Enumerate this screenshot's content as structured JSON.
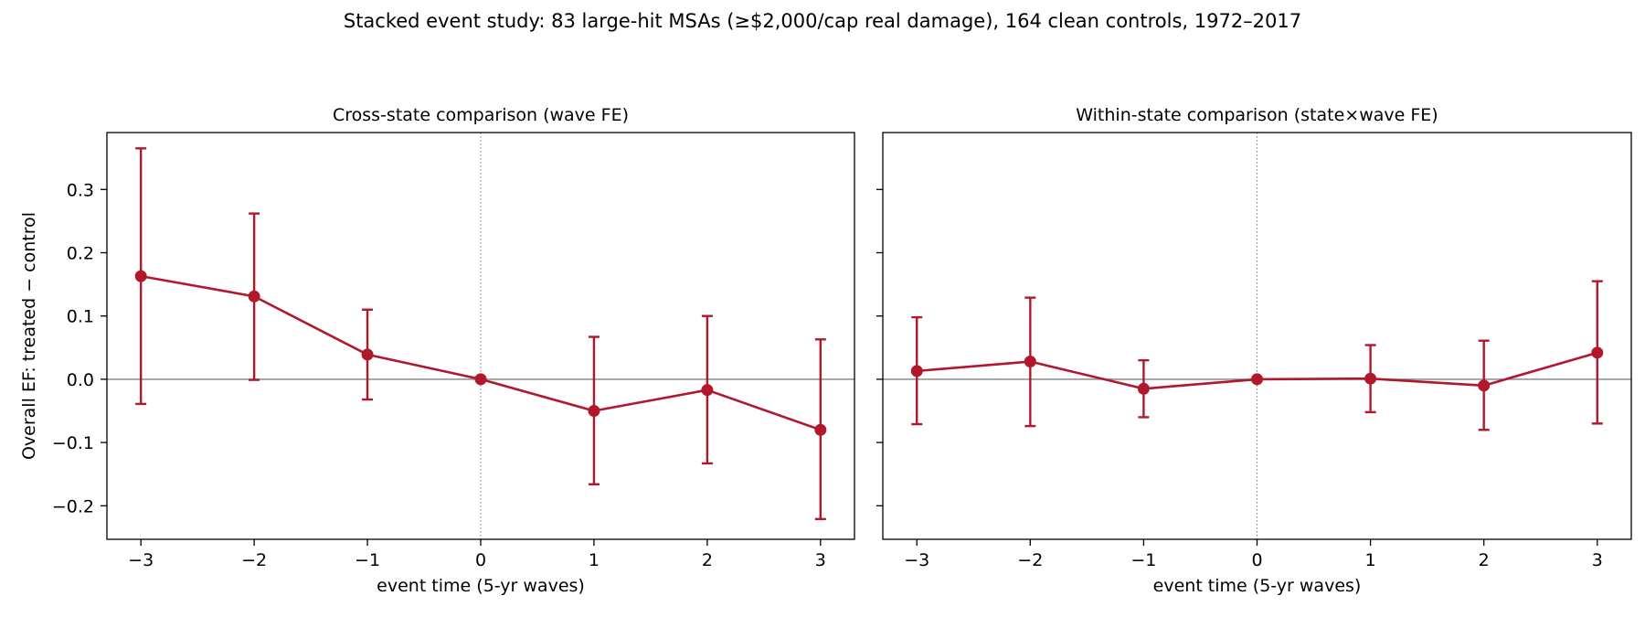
{
  "figure": {
    "suptitle": "Stacked event study: 83 large-hit MSAs (≥$2,000/cap real damage), 164 clean controls, 1972–2017"
  },
  "colors": {
    "series": "#b2182b",
    "zero_line": "#808080",
    "event_line": "#808080",
    "axes": "#000000"
  },
  "chart_data": [
    {
      "type": "line",
      "title": "Cross-state comparison (wave FE)",
      "xlabel": "event time (5-yr waves)",
      "ylabel": "Overall EF: treated − control",
      "x": [
        -3,
        -2,
        -1,
        0,
        1,
        2,
        3
      ],
      "xtick_labels": [
        "−3",
        "−2",
        "−1",
        "0",
        "1",
        "2",
        "3"
      ],
      "yticks": [
        -0.2,
        -0.1,
        0.0,
        0.1,
        0.2,
        0.3
      ],
      "ytick_labels": [
        "−0.2",
        "−0.1",
        "0.0",
        "0.1",
        "0.2",
        "0.3"
      ],
      "xlim": [
        -3.3,
        3.3
      ],
      "ylim": [
        -0.253,
        0.39
      ],
      "grid": false,
      "legend": "none",
      "reference_lines": {
        "y": 0,
        "x": 0
      },
      "series": [
        {
          "y": [
            0.163,
            0.131,
            0.039,
            0.0,
            -0.05,
            -0.017,
            -0.08
          ],
          "ci_low": [
            -0.039,
            -0.001,
            -0.032,
            0.0,
            -0.166,
            -0.133,
            -0.221
          ],
          "ci_high": [
            0.365,
            0.262,
            0.11,
            0.0,
            0.067,
            0.1,
            0.063
          ]
        }
      ]
    },
    {
      "type": "line",
      "title": "Within-state comparison (state×wave FE)",
      "xlabel": "event time (5-yr waves)",
      "ylabel": "",
      "x": [
        -3,
        -2,
        -1,
        0,
        1,
        2,
        3
      ],
      "xtick_labels": [
        "−3",
        "−2",
        "−1",
        "0",
        "1",
        "2",
        "3"
      ],
      "yticks": [
        -0.2,
        -0.1,
        0.0,
        0.1,
        0.2,
        0.3
      ],
      "ytick_labels": [],
      "xlim": [
        -3.3,
        3.3
      ],
      "ylim": [
        -0.253,
        0.39
      ],
      "grid": false,
      "legend": "none",
      "reference_lines": {
        "y": 0,
        "x": 0
      },
      "series": [
        {
          "y": [
            0.013,
            0.028,
            -0.015,
            0.0,
            0.001,
            -0.01,
            0.042
          ],
          "ci_low": [
            -0.071,
            -0.074,
            -0.06,
            0.0,
            -0.052,
            -0.08,
            -0.07
          ],
          "ci_high": [
            0.098,
            0.129,
            0.03,
            0.0,
            0.054,
            0.061,
            0.155
          ]
        }
      ]
    }
  ]
}
